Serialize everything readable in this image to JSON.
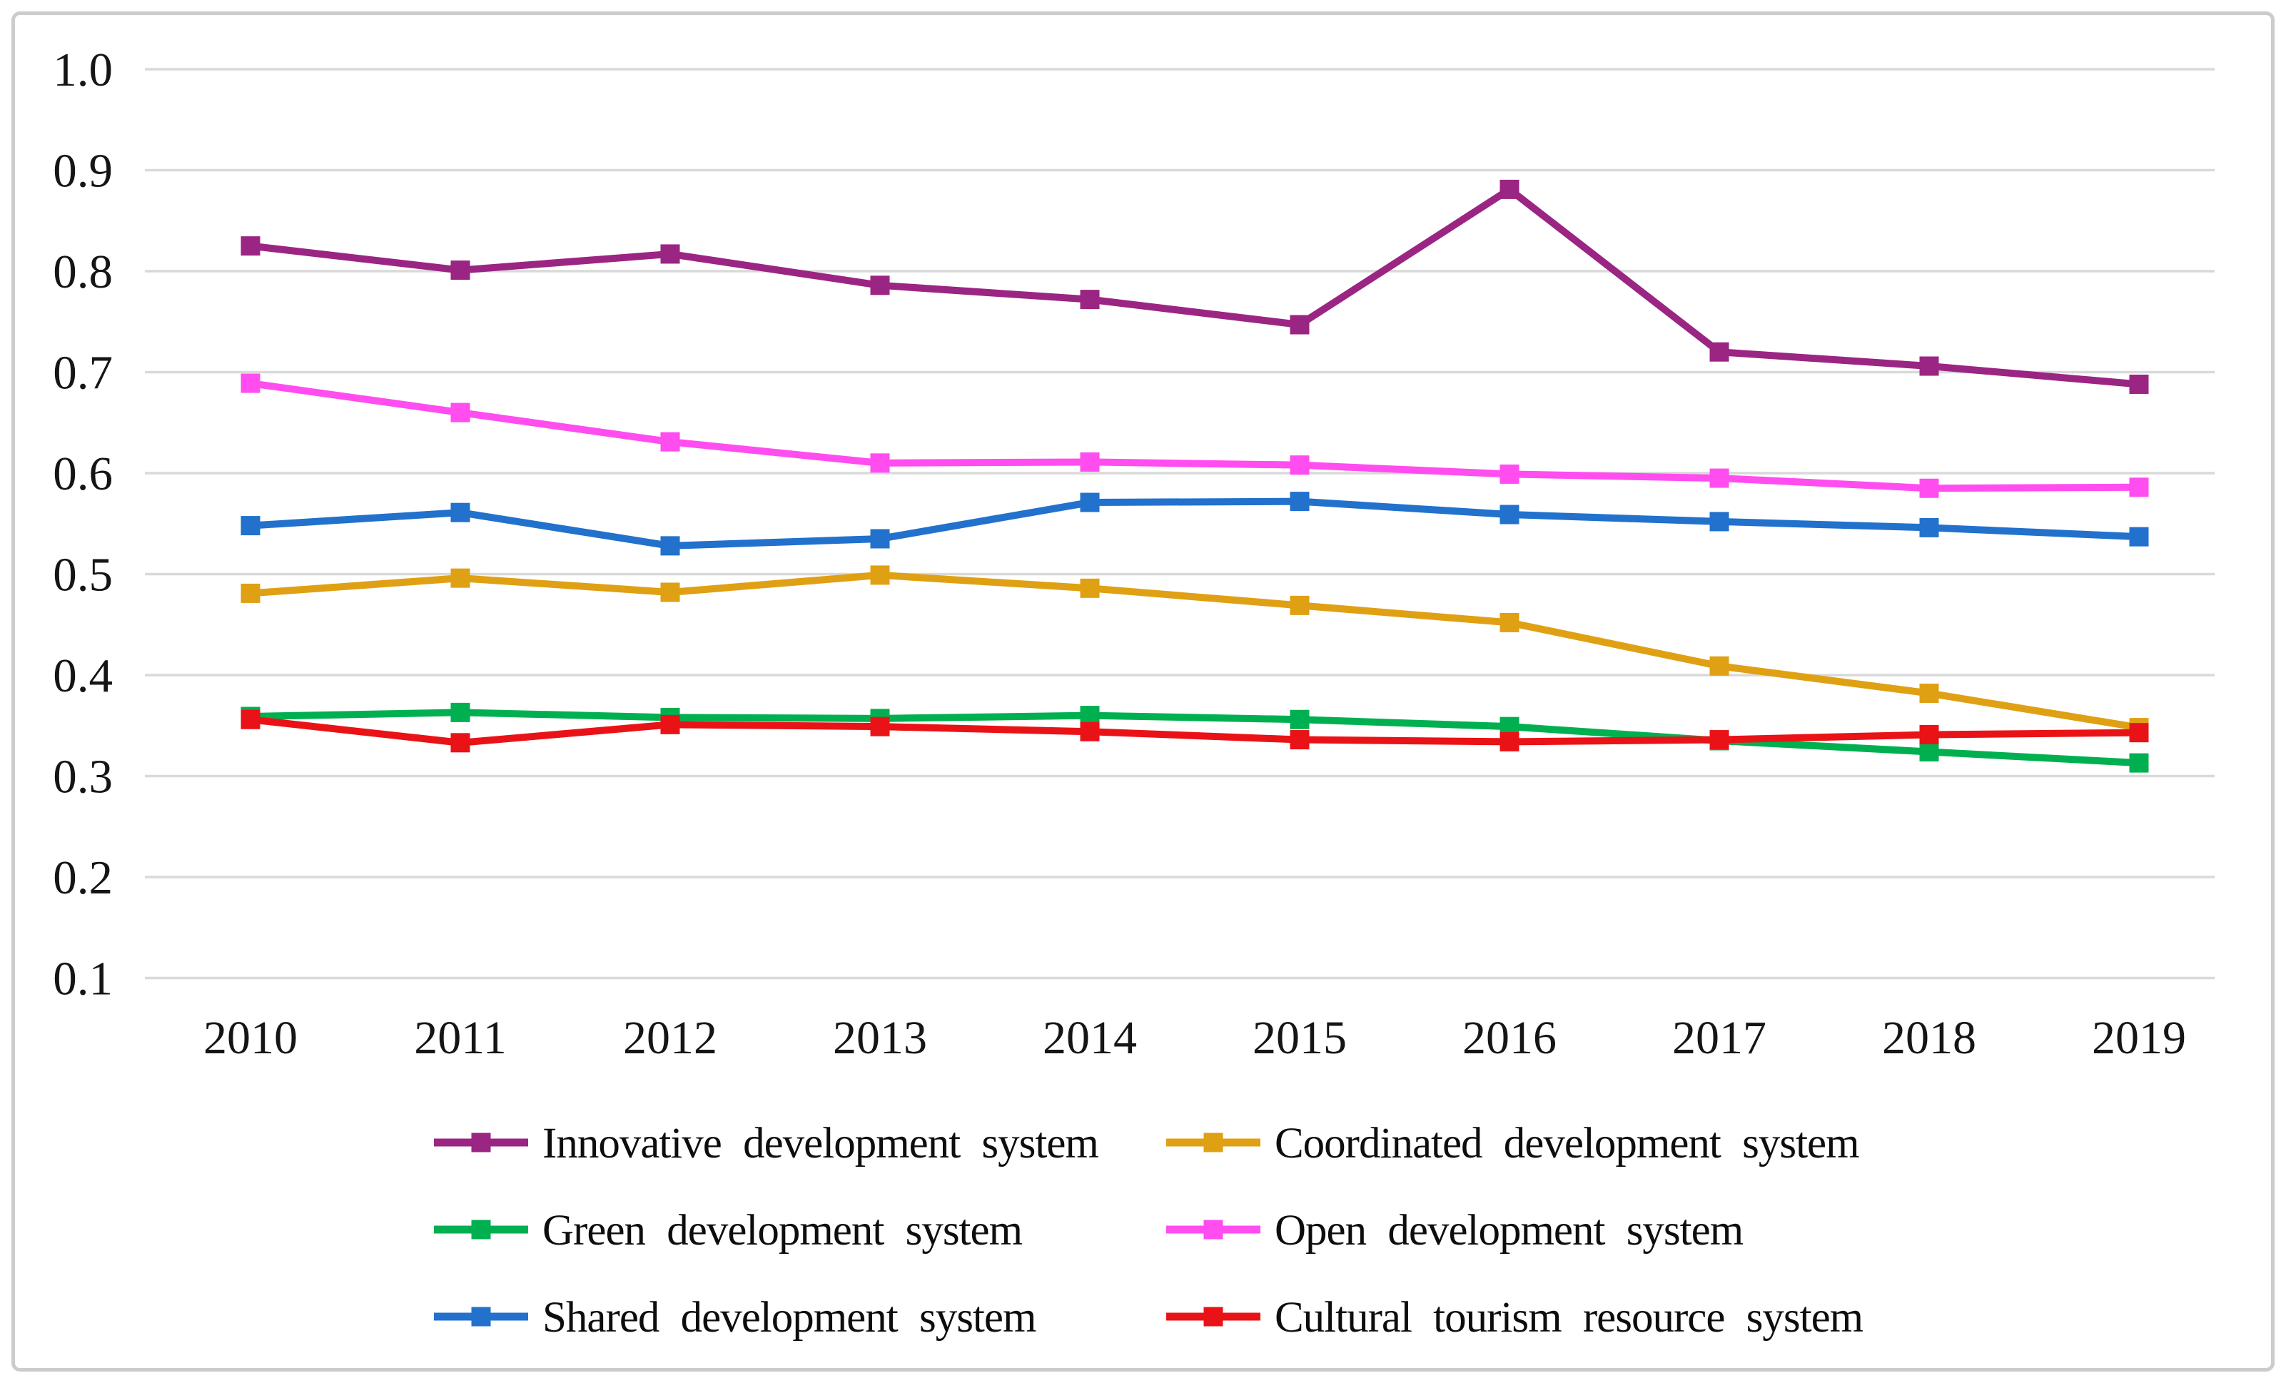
{
  "figure": {
    "background_color": "#ffffff",
    "frame_color": "#cccccc",
    "gridline_color": "#d9d9d9",
    "text_color": "#151515"
  },
  "chart_data": {
    "type": "line",
    "title": "",
    "xlabel": "",
    "ylabel": "",
    "x": [
      "2010",
      "2011",
      "2012",
      "2013",
      "2014",
      "2015",
      "2016",
      "2017",
      "2018",
      "2019"
    ],
    "ylim": [
      0.1,
      1.0
    ],
    "yticks": [
      1.0,
      0.9,
      0.8,
      0.7,
      0.6,
      0.5,
      0.4,
      0.3,
      0.2,
      0.1
    ],
    "ytick_labels": [
      "1.0",
      "0.9",
      "0.8",
      "0.7",
      "0.6",
      "0.5",
      "0.4",
      "0.3",
      "0.2",
      "0.1"
    ],
    "grid": true,
    "legend_position": "bottom",
    "marker": "square",
    "series": [
      {
        "name": "Innovative development system",
        "color": "#9B2583",
        "values": [
          0.825,
          0.801,
          0.817,
          0.786,
          0.772,
          0.747,
          0.881,
          0.72,
          0.706,
          0.688
        ]
      },
      {
        "name": "Coordinated development system",
        "color": "#DFA013",
        "values": [
          0.481,
          0.496,
          0.482,
          0.499,
          0.486,
          0.469,
          0.452,
          0.409,
          0.382,
          0.348
        ]
      },
      {
        "name": "Green development system",
        "color": "#00B050",
        "values": [
          0.359,
          0.363,
          0.358,
          0.357,
          0.36,
          0.356,
          0.349,
          0.335,
          0.324,
          0.313
        ]
      },
      {
        "name": "Open development system",
        "color": "#FF4DF0",
        "values": [
          0.689,
          0.66,
          0.631,
          0.61,
          0.611,
          0.608,
          0.599,
          0.595,
          0.585,
          0.586
        ]
      },
      {
        "name": "Shared development system",
        "color": "#2271CC",
        "values": [
          0.548,
          0.561,
          0.528,
          0.535,
          0.571,
          0.572,
          0.559,
          0.552,
          0.546,
          0.537
        ]
      },
      {
        "name": "Cultural tourism resource system",
        "color": "#E91317",
        "values": [
          0.356,
          0.333,
          0.351,
          0.349,
          0.344,
          0.336,
          0.334,
          0.336,
          0.341,
          0.343
        ]
      }
    ]
  }
}
